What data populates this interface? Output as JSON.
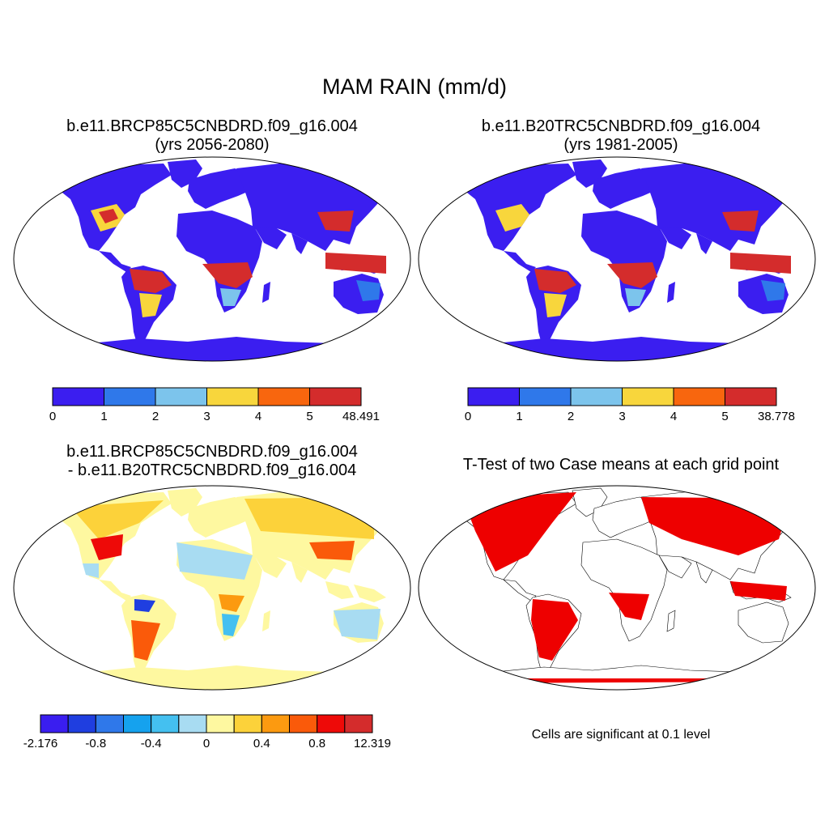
{
  "figure": {
    "title": "MAM RAIN (mm/d)"
  },
  "panels": [
    {
      "id": "future",
      "title_line1": "b.e11.BRCP85C5CNBDRD.f09_g16.004",
      "title_line2": "(yrs 2056-2080)",
      "colorbar": {
        "colors": [
          "#3b1ef0",
          "#2f78ea",
          "#7cc4ec",
          "#f8d63c",
          "#f8660e",
          "#d42c2c"
        ],
        "labels": [
          "0",
          "1",
          "2",
          "3",
          "4",
          "5",
          "48.491"
        ]
      }
    },
    {
      "id": "historical",
      "title_line1": "b.e11.B20TRC5CNBDRD.f09_g16.004",
      "title_line2": "(yrs 1981-2005)",
      "colorbar": {
        "colors": [
          "#3b1ef0",
          "#2f78ea",
          "#7cc4ec",
          "#f8d63c",
          "#f8660e",
          "#d42c2c"
        ],
        "labels": [
          "0",
          "1",
          "2",
          "3",
          "4",
          "5",
          "38.778"
        ]
      }
    },
    {
      "id": "difference",
      "title_line1": "b.e11.BRCP85C5CNBDRD.f09_g16.004",
      "title_line2": "- b.e11.B20TRC5CNBDRD.f09_g16.004",
      "colorbar": {
        "colors": [
          "#3a1ef0",
          "#1f3ee0",
          "#2f78ea",
          "#15a2ee",
          "#44c0f0",
          "#a8dcf2",
          "#fef8a0",
          "#fcd23a",
          "#fc9a10",
          "#fa5a0a",
          "#ee0a08",
          "#d42c2c"
        ],
        "labels": [
          "-2.176",
          "-0.8",
          "-0.4",
          "0",
          "0.4",
          "0.8",
          "12.319"
        ]
      }
    },
    {
      "id": "ttest",
      "title_line1": "T-Test of two Case means at each grid point",
      "note": "Cells are significant at 0.1 level",
      "significance_color": "#ee0000"
    }
  ]
}
